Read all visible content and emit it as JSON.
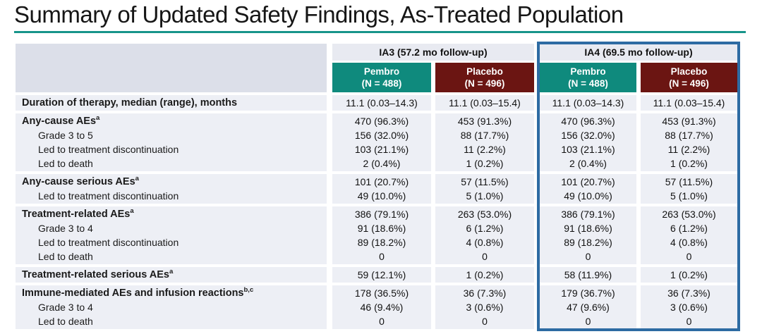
{
  "title": "Summary of Updated Safety Findings, As-Treated Population",
  "colors": {
    "accent_teal": "#0f8a7d",
    "maroon": "#6b1512",
    "highlight_border": "#2d6ba3",
    "row_band": "#edeff5",
    "header_band": "#e8eaf1",
    "corner_cell": "#dcdfe9",
    "title_rule": "#17948a"
  },
  "table": {
    "column_groups": [
      {
        "label": "IA3 (57.2 mo follow-up)",
        "highlighted": false
      },
      {
        "label": "IA4 (69.5 mo follow-up)",
        "highlighted": true
      }
    ],
    "arm_headers": [
      {
        "name": "Pembro",
        "n": "(N = 488)",
        "color": "teal"
      },
      {
        "name": "Placebo",
        "n": "(N = 496)",
        "color": "maroon"
      },
      {
        "name": "Pembro",
        "n": "(N = 488)",
        "color": "teal"
      },
      {
        "name": "Placebo",
        "n": "(N = 496)",
        "color": "maroon"
      }
    ],
    "row_groups": [
      {
        "rows": [
          {
            "label": "Duration of therapy, median (range), months",
            "sup": "",
            "bold": true,
            "indent": false,
            "values": [
              "11.1 (0.03–14.3)",
              "11.1 (0.03–15.4)",
              "11.1 (0.03–14.3)",
              "11.1 (0.03–15.4)"
            ]
          }
        ]
      },
      {
        "rows": [
          {
            "label": "Any-cause AEs",
            "sup": "a",
            "bold": true,
            "indent": false,
            "values": [
              "470 (96.3%)",
              "453 (91.3%)",
              "470 (96.3%)",
              "453 (91.3%)"
            ]
          },
          {
            "label": "Grade 3 to 5",
            "sup": "",
            "bold": false,
            "indent": true,
            "values": [
              "156 (32.0%)",
              "88 (17.7%)",
              "156 (32.0%)",
              "88 (17.7%)"
            ]
          },
          {
            "label": "Led to treatment discontinuation",
            "sup": "",
            "bold": false,
            "indent": true,
            "values": [
              "103 (21.1%)",
              "11 (2.2%)",
              "103 (21.1%)",
              "11 (2.2%)"
            ]
          },
          {
            "label": "Led to death",
            "sup": "",
            "bold": false,
            "indent": true,
            "values": [
              "2 (0.4%)",
              "1 (0.2%)",
              "2 (0.4%)",
              "1 (0.2%)"
            ]
          }
        ]
      },
      {
        "rows": [
          {
            "label": "Any-cause serious AEs",
            "sup": "a",
            "bold": true,
            "indent": false,
            "values": [
              "101 (20.7%)",
              "57 (11.5%)",
              "101 (20.7%)",
              "57 (11.5%)"
            ]
          },
          {
            "label": "Led to treatment discontinuation",
            "sup": "",
            "bold": false,
            "indent": true,
            "values": [
              "49 (10.0%)",
              "5 (1.0%)",
              "49 (10.0%)",
              "5 (1.0%)"
            ]
          }
        ]
      },
      {
        "rows": [
          {
            "label": "Treatment-related AEs",
            "sup": "a",
            "bold": true,
            "indent": false,
            "values": [
              "386 (79.1%)",
              "263 (53.0%)",
              "386 (79.1%)",
              "263 (53.0%)"
            ]
          },
          {
            "label": "Grade 3 to 4",
            "sup": "",
            "bold": false,
            "indent": true,
            "values": [
              "91 (18.6%)",
              "6 (1.2%)",
              "91 (18.6%)",
              "6 (1.2%)"
            ]
          },
          {
            "label": "Led to treatment discontinuation",
            "sup": "",
            "bold": false,
            "indent": true,
            "values": [
              "89 (18.2%)",
              "4 (0.8%)",
              "89 (18.2%)",
              "4 (0.8%)"
            ]
          },
          {
            "label": "Led to death",
            "sup": "",
            "bold": false,
            "indent": true,
            "values": [
              "0",
              "0",
              "0",
              "0"
            ]
          }
        ]
      },
      {
        "rows": [
          {
            "label": "Treatment-related serious AEs",
            "sup": "a",
            "bold": true,
            "indent": false,
            "values": [
              "59 (12.1%)",
              "1 (0.2%)",
              "58 (11.9%)",
              "1 (0.2%)"
            ]
          }
        ]
      },
      {
        "rows": [
          {
            "label": "Immune-mediated AEs and infusion reactions",
            "sup": "b,c",
            "bold": true,
            "indent": false,
            "values": [
              "178 (36.5%)",
              "36 (7.3%)",
              "179 (36.7%)",
              "36 (7.3%)"
            ]
          },
          {
            "label": "Grade 3 to 4",
            "sup": "",
            "bold": false,
            "indent": true,
            "values": [
              "46 (9.4%)",
              "3 (0.6%)",
              "47 (9.6%)",
              "3 (0.6%)"
            ]
          },
          {
            "label": "Led to death",
            "sup": "",
            "bold": false,
            "indent": true,
            "values": [
              "0",
              "0",
              "0",
              "0"
            ]
          }
        ]
      }
    ]
  }
}
